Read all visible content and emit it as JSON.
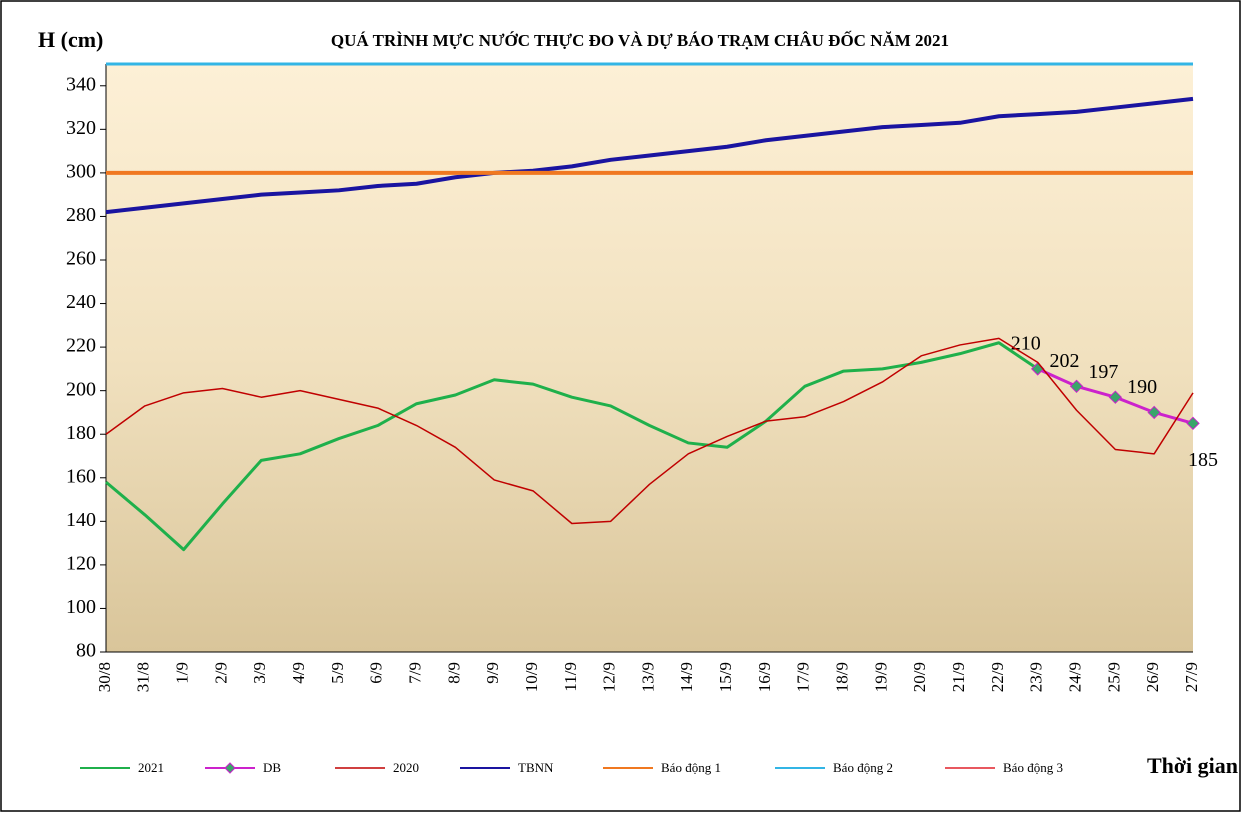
{
  "chart_data": {
    "type": "line",
    "title": "QUÁ TRÌNH MỰC NƯỚC THỰC ĐO VÀ DỰ BÁO TRẠM CHÂU ĐỐC NĂM 2021",
    "y_label": "H (cm)",
    "x_label": "Thời gian",
    "categories": [
      "30/8",
      "31/8",
      "1/9",
      "2/9",
      "3/9",
      "4/9",
      "5/9",
      "6/9",
      "7/9",
      "8/9",
      "9/9",
      "10/9",
      "11/9",
      "12/9",
      "13/9",
      "14/9",
      "15/9",
      "16/9",
      "17/9",
      "18/9",
      "19/9",
      "20/9",
      "21/9",
      "22/9",
      "23/9",
      "24/9",
      "25/9",
      "26/9",
      "27/9"
    ],
    "series": [
      {
        "name": "2021",
        "color": "#1fb04b",
        "width": 3,
        "values": [
          158,
          143,
          127,
          148,
          168,
          171,
          178,
          184,
          194,
          198,
          205,
          203,
          197,
          193,
          184,
          176,
          174,
          186,
          202,
          209,
          210,
          213,
          217,
          222,
          210,
          null,
          null,
          null,
          null
        ]
      },
      {
        "name": "DB",
        "color": "#cc22cc",
        "width": 3,
        "marker": "diamond",
        "marker_color": "#3aa56a",
        "data_labels": true,
        "values": [
          null,
          null,
          null,
          null,
          null,
          null,
          null,
          null,
          null,
          null,
          null,
          null,
          null,
          null,
          null,
          null,
          null,
          null,
          null,
          null,
          null,
          null,
          null,
          null,
          210,
          202,
          197,
          190,
          185
        ]
      },
      {
        "name": "2020",
        "color": "#c00000",
        "width": 1.5,
        "values": [
          180,
          193,
          199,
          201,
          197,
          200,
          196,
          192,
          184,
          174,
          159,
          154,
          139,
          140,
          157,
          171,
          179,
          186,
          188,
          195,
          204,
          216,
          221,
          224,
          213,
          191,
          173,
          171,
          199
        ]
      },
      {
        "name": "TBNN",
        "color": "#1a14a0",
        "width": 4,
        "values": [
          282,
          284,
          286,
          288,
          290,
          291,
          292,
          294,
          295,
          298,
          300,
          301,
          303,
          306,
          308,
          310,
          312,
          315,
          317,
          319,
          321,
          322,
          323,
          326,
          327,
          328,
          330,
          332,
          334
        ]
      },
      {
        "name": "Báo động 1",
        "color": "#f07820",
        "width": 4,
        "values": [
          300,
          300,
          300,
          300,
          300,
          300,
          300,
          300,
          300,
          300,
          300,
          300,
          300,
          300,
          300,
          300,
          300,
          300,
          300,
          300,
          300,
          300,
          300,
          300,
          300,
          300,
          300,
          300,
          300
        ]
      },
      {
        "name": "Báo động 2",
        "color": "#33b5e5",
        "width": 3,
        "values": [
          350,
          350,
          350,
          350,
          350,
          350,
          350,
          350,
          350,
          350,
          350,
          350,
          350,
          350,
          350,
          350,
          350,
          350,
          350,
          350,
          350,
          350,
          350,
          350,
          350,
          350,
          350,
          350,
          350
        ]
      },
      {
        "name": "Báo động 3",
        "color": "#e0202a",
        "width": 1.5,
        "values": [
          null,
          null,
          null,
          null,
          null,
          null,
          null,
          null,
          null,
          null,
          null,
          null,
          null,
          null,
          null,
          null,
          null,
          null,
          null,
          null,
          null,
          null,
          null,
          null,
          null,
          null,
          null,
          null,
          null
        ]
      }
    ],
    "ylim": [
      80,
      350
    ],
    "yticks": [
      80,
      100,
      120,
      140,
      160,
      180,
      200,
      220,
      240,
      260,
      280,
      300,
      320,
      340
    ],
    "grid": false
  }
}
